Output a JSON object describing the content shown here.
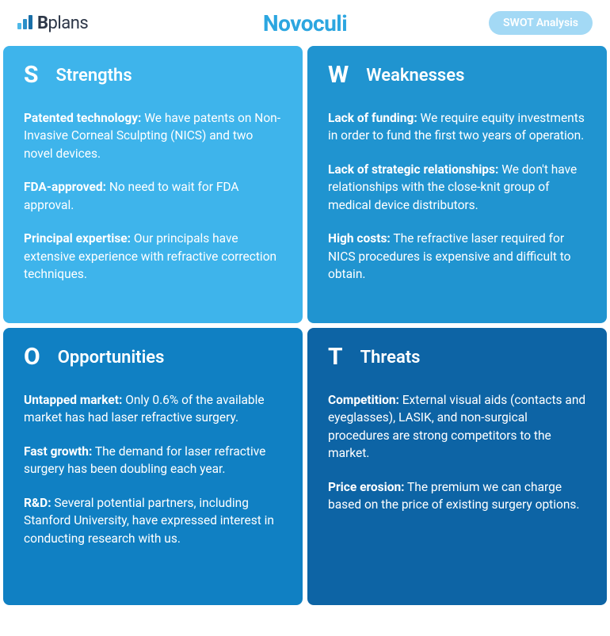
{
  "header": {
    "logo_text_bold": "B",
    "logo_text_rest": "plans",
    "logo_bars": [
      {
        "height": 8,
        "color": "#4fb9e8"
      },
      {
        "height": 13,
        "color": "#2a8fc9"
      },
      {
        "height": 18,
        "color": "#1a6fa8"
      }
    ],
    "title": "Novoculi",
    "badge": "SWOT Analysis",
    "badge_bg": "#a3d9f5",
    "title_color": "#2ca6e0"
  },
  "quadrants": [
    {
      "key": "s",
      "letter": "S",
      "title": "Strengths",
      "bg": "#3eb4eb",
      "items": [
        {
          "label": "Patented technology:",
          "text": " We have patents on Non-Invasive Corneal Sculpting (NICS) and two novel devices."
        },
        {
          "label": "FDA-approved:",
          "text": " No need to wait for FDA approval."
        },
        {
          "label": "Principal expertise:",
          "text": " Our principals have extensive experience with refractive correction techniques."
        }
      ]
    },
    {
      "key": "w",
      "letter": "W",
      "title": "Weaknesses",
      "bg": "#2094d0",
      "items": [
        {
          "label": "Lack of funding:",
          "text": " We require equity investments in order to fund the first two years of operation."
        },
        {
          "label": "Lack of strategic relationships:",
          "text": " We don't have relationships with the close-knit group of medical device distributors."
        },
        {
          "label": "High costs:",
          "text": " The refractive laser required for NICS procedures is expensive and difficult to obtain."
        }
      ]
    },
    {
      "key": "o",
      "letter": "O",
      "title": "Opportunities",
      "bg": "#1080c3",
      "items": [
        {
          "label": "Untapped market:",
          "text": " Only 0.6% of the available market has had laser refractive surgery."
        },
        {
          "label": "Fast growth:",
          "text": " The demand for laser refractive surgery has been doubling each year."
        },
        {
          "label": "R&D:",
          "text": " Several potential partners, including Stanford University, have expressed interest in conducting research with us."
        }
      ]
    },
    {
      "key": "t",
      "letter": "T",
      "title": "Threats",
      "bg": "#0d64a5",
      "items": [
        {
          "label": "Competition:",
          "text": " External visual aids (contacts and eyeglasses), LASIK, and non-surgical procedures are strong competitors to the market."
        },
        {
          "label": "Price erosion:",
          "text": " The premium we can charge based on the price of existing surgery options."
        }
      ]
    }
  ]
}
